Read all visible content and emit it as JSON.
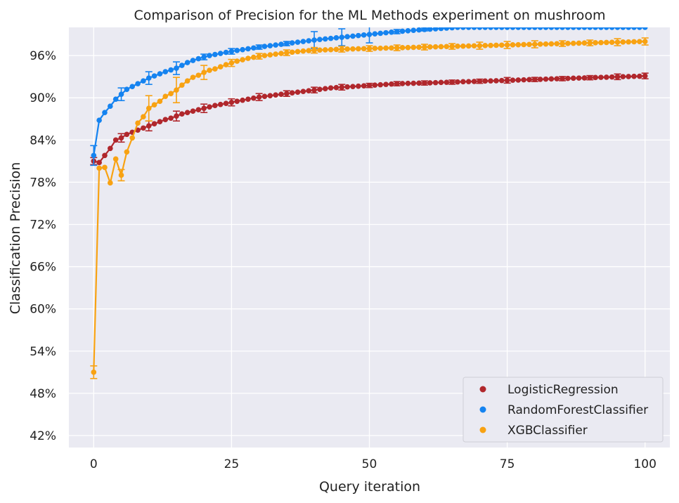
{
  "chart_data": {
    "type": "line",
    "title": "Comparison of Precision for the ML Methods experiment on mushroom",
    "xlabel": "Query iteration",
    "ylabel": "Classification Precision",
    "xlim": [
      -4.5,
      104.5
    ],
    "ylim": [
      0.403,
      1.0
    ],
    "x_ticks": [
      0,
      25,
      50,
      75,
      100
    ],
    "x_tick_labels": [
      "0",
      "25",
      "50",
      "75",
      "100"
    ],
    "y_ticks": [
      0.42,
      0.48,
      0.54,
      0.6,
      0.66,
      0.72,
      0.78,
      0.84,
      0.9,
      0.96
    ],
    "y_tick_labels": [
      "42%",
      "48%",
      "54%",
      "60%",
      "66%",
      "72%",
      "78%",
      "84%",
      "90%",
      "96%"
    ],
    "grid": true,
    "background": "#eaeaf2",
    "legend_position": "bottom-right",
    "x": [
      0,
      1,
      2,
      3,
      4,
      5,
      6,
      7,
      8,
      9,
      10,
      11,
      12,
      13,
      14,
      15,
      16,
      17,
      18,
      19,
      20,
      21,
      22,
      23,
      24,
      25,
      26,
      27,
      28,
      29,
      30,
      31,
      32,
      33,
      34,
      35,
      36,
      37,
      38,
      39,
      40,
      41,
      42,
      43,
      44,
      45,
      46,
      47,
      48,
      49,
      50,
      51,
      52,
      53,
      54,
      55,
      56,
      57,
      58,
      59,
      60,
      61,
      62,
      63,
      64,
      65,
      66,
      67,
      68,
      69,
      70,
      71,
      72,
      73,
      74,
      75,
      76,
      77,
      78,
      79,
      80,
      81,
      82,
      83,
      84,
      85,
      86,
      87,
      88,
      89,
      90,
      91,
      92,
      93,
      94,
      95,
      96,
      97,
      98,
      99,
      100
    ],
    "series": [
      {
        "name": "LogisticRegression",
        "color": "#b0272c",
        "values": [
          0.81,
          0.808,
          0.818,
          0.828,
          0.84,
          0.843,
          0.848,
          0.851,
          0.854,
          0.857,
          0.86,
          0.863,
          0.866,
          0.869,
          0.871,
          0.874,
          0.877,
          0.879,
          0.881,
          0.883,
          0.885,
          0.887,
          0.889,
          0.8905,
          0.892,
          0.8935,
          0.895,
          0.8965,
          0.898,
          0.8995,
          0.901,
          0.902,
          0.903,
          0.904,
          0.905,
          0.906,
          0.907,
          0.908,
          0.909,
          0.91,
          0.911,
          0.912,
          0.913,
          0.914,
          0.9145,
          0.915,
          0.9155,
          0.916,
          0.9165,
          0.917,
          0.9175,
          0.918,
          0.9185,
          0.919,
          0.9195,
          0.92,
          0.9202,
          0.9204,
          0.9206,
          0.9208,
          0.921,
          0.9212,
          0.9215,
          0.9218,
          0.922,
          0.9222,
          0.9225,
          0.9228,
          0.923,
          0.9232,
          0.9235,
          0.9238,
          0.924,
          0.9242,
          0.9245,
          0.9248,
          0.925,
          0.9252,
          0.9255,
          0.9258,
          0.926,
          0.9262,
          0.9265,
          0.9268,
          0.927,
          0.9272,
          0.9275,
          0.9278,
          0.928,
          0.9282,
          0.9285,
          0.9288,
          0.929,
          0.9292,
          0.9295,
          0.9298,
          0.93,
          0.9302,
          0.9304,
          0.9306,
          0.931
        ],
        "error_bars": [
          [
            0,
            0.005
          ],
          [
            5,
            0.006
          ],
          [
            10,
            0.007
          ],
          [
            15,
            0.007
          ],
          [
            20,
            0.006
          ],
          [
            25,
            0.005
          ],
          [
            30,
            0.005
          ],
          [
            35,
            0.004
          ],
          [
            40,
            0.004
          ],
          [
            45,
            0.004
          ],
          [
            50,
            0.003
          ],
          [
            55,
            0.003
          ],
          [
            60,
            0.003
          ],
          [
            65,
            0.003
          ],
          [
            70,
            0.003
          ],
          [
            75,
            0.004
          ],
          [
            80,
            0.003
          ],
          [
            85,
            0.003
          ],
          [
            90,
            0.003
          ],
          [
            95,
            0.004
          ],
          [
            100,
            0.004
          ]
        ]
      },
      {
        "name": "RandomForestClassifier",
        "color": "#1583f0",
        "values": [
          0.818,
          0.868,
          0.879,
          0.888,
          0.898,
          0.905,
          0.912,
          0.916,
          0.92,
          0.924,
          0.928,
          0.931,
          0.934,
          0.937,
          0.9395,
          0.942,
          0.946,
          0.95,
          0.953,
          0.9555,
          0.958,
          0.96,
          0.9615,
          0.963,
          0.9645,
          0.966,
          0.9672,
          0.9684,
          0.9696,
          0.9708,
          0.972,
          0.973,
          0.974,
          0.975,
          0.976,
          0.977,
          0.978,
          0.979,
          0.98,
          0.981,
          0.982,
          0.9828,
          0.9836,
          0.9844,
          0.9852,
          0.986,
          0.9868,
          0.9876,
          0.9884,
          0.9892,
          0.99,
          0.9908,
          0.9916,
          0.9924,
          0.9932,
          0.994,
          0.9946,
          0.9952,
          0.9958,
          0.9964,
          0.997,
          0.9975,
          0.998,
          0.9985,
          0.999,
          0.9995,
          1.0,
          1.0,
          1.0,
          1.0,
          1.0,
          1.0,
          1.0,
          1.0,
          1.0,
          1.0,
          1.0,
          1.0,
          1.0,
          1.0,
          1.0,
          1.0,
          1.0,
          1.0,
          1.0,
          1.0,
          1.0,
          1.0,
          1.0,
          1.0,
          1.0,
          1.0,
          1.0,
          1.0,
          1.0,
          1.0,
          1.0,
          1.0,
          1.0,
          1.0,
          1.0
        ],
        "error_bars": [
          [
            0,
            0.014
          ],
          [
            5,
            0.009
          ],
          [
            10,
            0.009
          ],
          [
            15,
            0.009
          ],
          [
            20,
            0.004
          ],
          [
            25,
            0.004
          ],
          [
            30,
            0.003
          ],
          [
            35,
            0.003
          ],
          [
            40,
            0.012
          ],
          [
            45,
            0.012
          ],
          [
            50,
            0.012
          ],
          [
            55,
            0.003
          ],
          [
            60,
            0.002
          ]
        ]
      },
      {
        "name": "XGBClassifier",
        "color": "#f8a212",
        "values": [
          0.51,
          0.8,
          0.801,
          0.779,
          0.813,
          0.79,
          0.823,
          0.843,
          0.864,
          0.873,
          0.885,
          0.89,
          0.895,
          0.902,
          0.906,
          0.911,
          0.918,
          0.924,
          0.929,
          0.932,
          0.936,
          0.939,
          0.941,
          0.944,
          0.947,
          0.9495,
          0.952,
          0.954,
          0.956,
          0.9575,
          0.959,
          0.96,
          0.961,
          0.962,
          0.963,
          0.964,
          0.9648,
          0.9656,
          0.9664,
          0.967,
          0.9675,
          0.9678,
          0.9681,
          0.9684,
          0.9687,
          0.969,
          0.9692,
          0.9694,
          0.9696,
          0.9698,
          0.97,
          0.9702,
          0.9704,
          0.9706,
          0.9708,
          0.971,
          0.9712,
          0.9714,
          0.9716,
          0.9718,
          0.972,
          0.9722,
          0.9724,
          0.9726,
          0.9728,
          0.973,
          0.9732,
          0.9734,
          0.9736,
          0.9738,
          0.974,
          0.9742,
          0.9744,
          0.9746,
          0.9748,
          0.975,
          0.9752,
          0.9754,
          0.9756,
          0.9758,
          0.976,
          0.9762,
          0.9764,
          0.9766,
          0.9768,
          0.977,
          0.9772,
          0.9774,
          0.9776,
          0.9778,
          0.978,
          0.9782,
          0.9784,
          0.9786,
          0.9788,
          0.979,
          0.9792,
          0.9794,
          0.9796,
          0.9798,
          0.98
        ],
        "error_bars": [
          [
            0,
            0.009
          ],
          [
            5,
            0.008
          ],
          [
            10,
            0.018
          ],
          [
            15,
            0.018
          ],
          [
            20,
            0.01
          ],
          [
            25,
            0.005
          ],
          [
            30,
            0.004
          ],
          [
            35,
            0.004
          ],
          [
            40,
            0.004
          ],
          [
            45,
            0.004
          ],
          [
            50,
            0.004
          ],
          [
            55,
            0.004
          ],
          [
            60,
            0.004
          ],
          [
            65,
            0.004
          ],
          [
            70,
            0.005
          ],
          [
            75,
            0.005
          ],
          [
            80,
            0.005
          ],
          [
            85,
            0.004
          ],
          [
            90,
            0.004
          ],
          [
            95,
            0.005
          ],
          [
            100,
            0.005
          ]
        ]
      }
    ]
  }
}
